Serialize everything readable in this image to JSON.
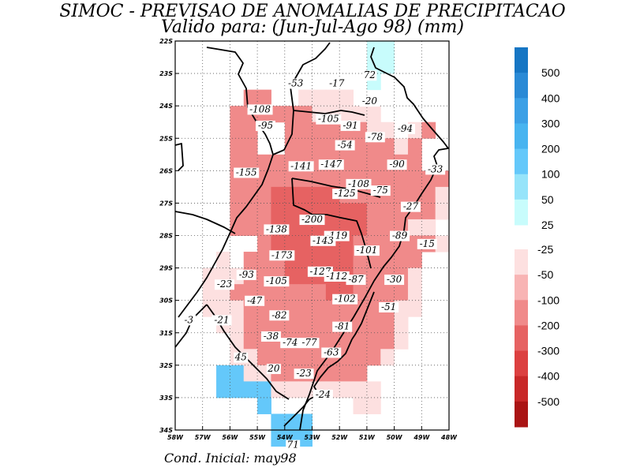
{
  "title": {
    "line1": "SIMOC - PREVISAO DE ANOMALIAS DE PRECIPITACAO",
    "line2": "Valido para: (Jun-Jul-Ago 98) (mm)"
  },
  "footer": "Cond. Inicial: may98",
  "axes": {
    "lon_ticks": [
      "58W",
      "57W",
      "56W",
      "55W",
      "54W",
      "53W",
      "52W",
      "51W",
      "50W",
      "49W",
      "48W"
    ],
    "lat_ticks": [
      "22S",
      "23S",
      "24S",
      "25S",
      "26S",
      "27S",
      "28S",
      "29S",
      "30S",
      "31S",
      "32S",
      "33S",
      "34S"
    ]
  },
  "colors": {
    "positive": [
      "#c8fcfc",
      "#96e4fa",
      "#64c8fa",
      "#48b4f0",
      "#3ca0e6",
      "#2a8ad6",
      "#1676c4"
    ],
    "negative": [
      "#fde0e0",
      "#f8b4b4",
      "#f08a8a",
      "#e66262",
      "#dc4040",
      "#c82828",
      "#aa1414"
    ],
    "coast": "#000000"
  },
  "colorbar": {
    "positive_labels": [
      "500",
      "400",
      "300",
      "200",
      "100",
      "50",
      "25"
    ],
    "negative_labels": [
      "-25",
      "-50",
      "-100",
      "-200",
      "-300",
      "-400",
      "-500"
    ]
  },
  "values": [
    {
      "text": "-53",
      "lon": 53.6,
      "lat": 23.4
    },
    {
      "text": "-17",
      "lon": 52.1,
      "lat": 23.4
    },
    {
      "text": "72",
      "lon": 50.9,
      "lat": 23.15
    },
    {
      "text": "-20",
      "lon": 50.9,
      "lat": 23.95
    },
    {
      "text": "-108",
      "lon": 54.9,
      "lat": 24.2
    },
    {
      "text": "-95",
      "lon": 54.7,
      "lat": 24.7
    },
    {
      "text": "-105",
      "lon": 52.4,
      "lat": 24.5
    },
    {
      "text": "-91",
      "lon": 51.6,
      "lat": 24.7
    },
    {
      "text": "-94",
      "lon": 49.6,
      "lat": 24.8
    },
    {
      "text": "-78",
      "lon": 50.7,
      "lat": 25.05
    },
    {
      "text": "-54",
      "lon": 51.8,
      "lat": 25.3
    },
    {
      "text": "-141",
      "lon": 53.4,
      "lat": 25.95
    },
    {
      "text": "-147",
      "lon": 52.3,
      "lat": 25.9
    },
    {
      "text": "-90",
      "lon": 49.9,
      "lat": 25.9
    },
    {
      "text": "-33",
      "lon": 48.5,
      "lat": 26.05
    },
    {
      "text": "-155",
      "lon": 55.4,
      "lat": 26.15
    },
    {
      "text": "-108",
      "lon": 51.3,
      "lat": 26.5
    },
    {
      "text": "-75",
      "lon": 50.5,
      "lat": 26.7
    },
    {
      "text": "-125",
      "lon": 51.8,
      "lat": 26.8
    },
    {
      "text": "-27",
      "lon": 49.4,
      "lat": 27.2
    },
    {
      "text": "-200",
      "lon": 53.0,
      "lat": 27.6
    },
    {
      "text": "-138",
      "lon": 54.3,
      "lat": 27.9
    },
    {
      "text": "-119",
      "lon": 52.1,
      "lat": 28.1
    },
    {
      "text": "-143",
      "lon": 52.6,
      "lat": 28.25
    },
    {
      "text": "-89",
      "lon": 49.8,
      "lat": 28.1
    },
    {
      "text": "-15",
      "lon": 48.8,
      "lat": 28.35
    },
    {
      "text": "-173",
      "lon": 54.1,
      "lat": 28.7
    },
    {
      "text": "-101",
      "lon": 51.0,
      "lat": 28.55
    },
    {
      "text": "-93",
      "lon": 55.4,
      "lat": 29.3
    },
    {
      "text": "-105",
      "lon": 54.3,
      "lat": 29.5
    },
    {
      "text": "-127",
      "lon": 52.7,
      "lat": 29.2
    },
    {
      "text": "-112",
      "lon": 52.1,
      "lat": 29.35
    },
    {
      "text": "-87",
      "lon": 51.4,
      "lat": 29.45
    },
    {
      "text": "-30",
      "lon": 50.0,
      "lat": 29.45
    },
    {
      "text": "-23",
      "lon": 56.2,
      "lat": 29.6
    },
    {
      "text": "-47",
      "lon": 55.1,
      "lat": 30.1
    },
    {
      "text": "-102",
      "lon": 51.8,
      "lat": 30.05
    },
    {
      "text": "-51",
      "lon": 50.2,
      "lat": 30.3
    },
    {
      "text": "-82",
      "lon": 54.2,
      "lat": 30.55
    },
    {
      "text": "-3",
      "lon": 57.5,
      "lat": 30.7
    },
    {
      "text": "-21",
      "lon": 56.3,
      "lat": 30.7
    },
    {
      "text": "-81",
      "lon": 51.9,
      "lat": 30.9
    },
    {
      "text": "-38",
      "lon": 54.5,
      "lat": 31.2
    },
    {
      "text": "-74",
      "lon": 53.8,
      "lat": 31.4
    },
    {
      "text": "-77",
      "lon": 53.1,
      "lat": 31.4
    },
    {
      "text": "-63",
      "lon": 52.3,
      "lat": 31.7
    },
    {
      "text": "45",
      "lon": 55.6,
      "lat": 31.85
    },
    {
      "text": "20",
      "lon": 54.4,
      "lat": 32.2
    },
    {
      "text": "-23",
      "lon": 53.3,
      "lat": 32.35
    },
    {
      "text": "-24",
      "lon": 52.6,
      "lat": 33.0
    },
    {
      "text": "71",
      "lon": 53.7,
      "lat": 34.55
    }
  ]
}
